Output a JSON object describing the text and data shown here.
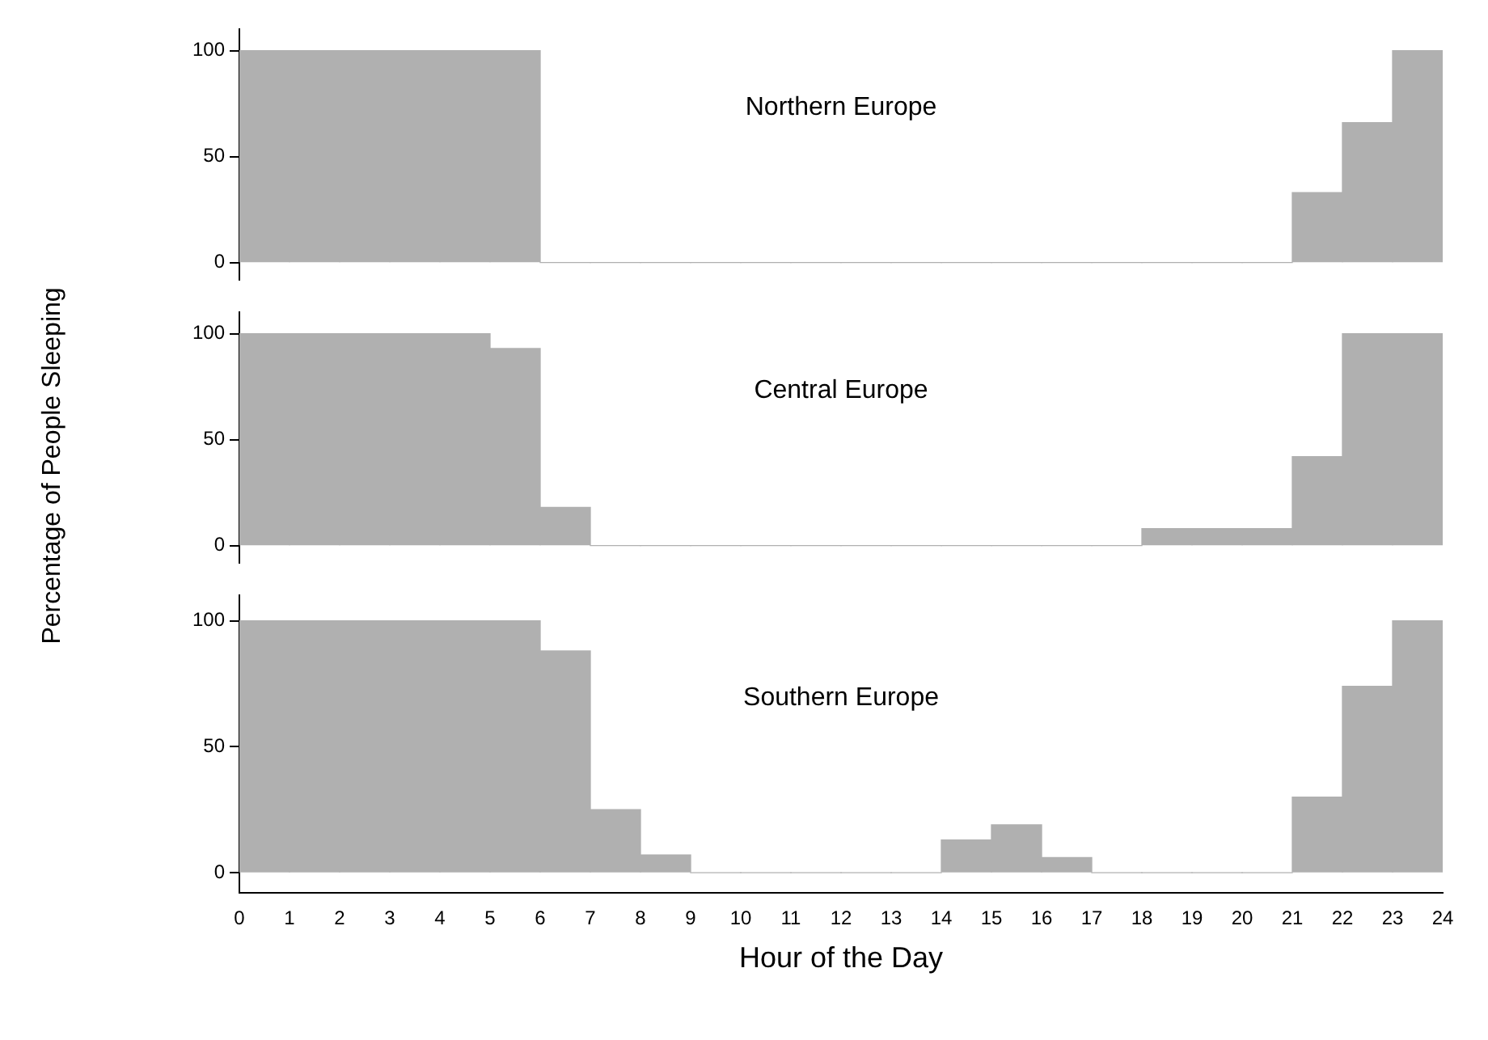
{
  "chart_data": [
    {
      "type": "histogram",
      "title": "Northern Europe",
      "bins": [
        0,
        1,
        2,
        3,
        4,
        5,
        6,
        7,
        8,
        9,
        10,
        11,
        12,
        13,
        14,
        15,
        16,
        17,
        18,
        19,
        20,
        21,
        22,
        23,
        24
      ],
      "values": [
        100,
        100,
        100,
        100,
        100,
        100,
        0,
        0,
        0,
        0,
        0,
        0,
        0,
        0,
        0,
        0,
        0,
        0,
        0,
        0,
        0,
        33,
        66,
        100
      ],
      "color": "#b0b0b0",
      "xlim": [
        0,
        24
      ],
      "ylim": [
        -8,
        110
      ],
      "yticks": [
        0,
        50,
        100
      ],
      "tick_labels": "y",
      "grid": false,
      "legend": false
    },
    {
      "type": "histogram",
      "title": "Central Europe",
      "ylabel": "Percentage of People Sleeping",
      "bins": [
        0,
        1,
        2,
        3,
        4,
        5,
        6,
        7,
        8,
        9,
        10,
        11,
        12,
        13,
        14,
        15,
        16,
        17,
        18,
        19,
        20,
        21,
        22,
        23,
        24
      ],
      "values": [
        100,
        100,
        100,
        100,
        100,
        93,
        18,
        0,
        0,
        0,
        0,
        0,
        0,
        0,
        0,
        0,
        0,
        0,
        8,
        8,
        8,
        42,
        100,
        100
      ],
      "color": "#b0b0b0",
      "xlim": [
        0,
        24
      ],
      "ylim": [
        -8,
        110
      ],
      "yticks": [
        0,
        50,
        100
      ],
      "tick_labels": "y",
      "grid": false,
      "legend": false
    },
    {
      "type": "histogram",
      "title": "Southern Europe",
      "xlabel": "Hour of the Day",
      "bins": [
        0,
        1,
        2,
        3,
        4,
        5,
        6,
        7,
        8,
        9,
        10,
        11,
        12,
        13,
        14,
        15,
        16,
        17,
        18,
        19,
        20,
        21,
        22,
        23,
        24
      ],
      "values": [
        100,
        100,
        100,
        100,
        100,
        100,
        88,
        25,
        7,
        0,
        0,
        0,
        0,
        0,
        13,
        19,
        6,
        0,
        0,
        0,
        0,
        30,
        74,
        100
      ],
      "color": "#b0b0b0",
      "xlim": [
        0,
        24
      ],
      "xticks": [
        0,
        1,
        2,
        3,
        4,
        5,
        6,
        7,
        8,
        9,
        10,
        11,
        12,
        13,
        14,
        15,
        16,
        17,
        18,
        19,
        20,
        21,
        22,
        23,
        24
      ],
      "ylim": [
        -8,
        110
      ],
      "yticks": [
        0,
        50,
        100
      ],
      "grid": false,
      "legend": false
    }
  ]
}
